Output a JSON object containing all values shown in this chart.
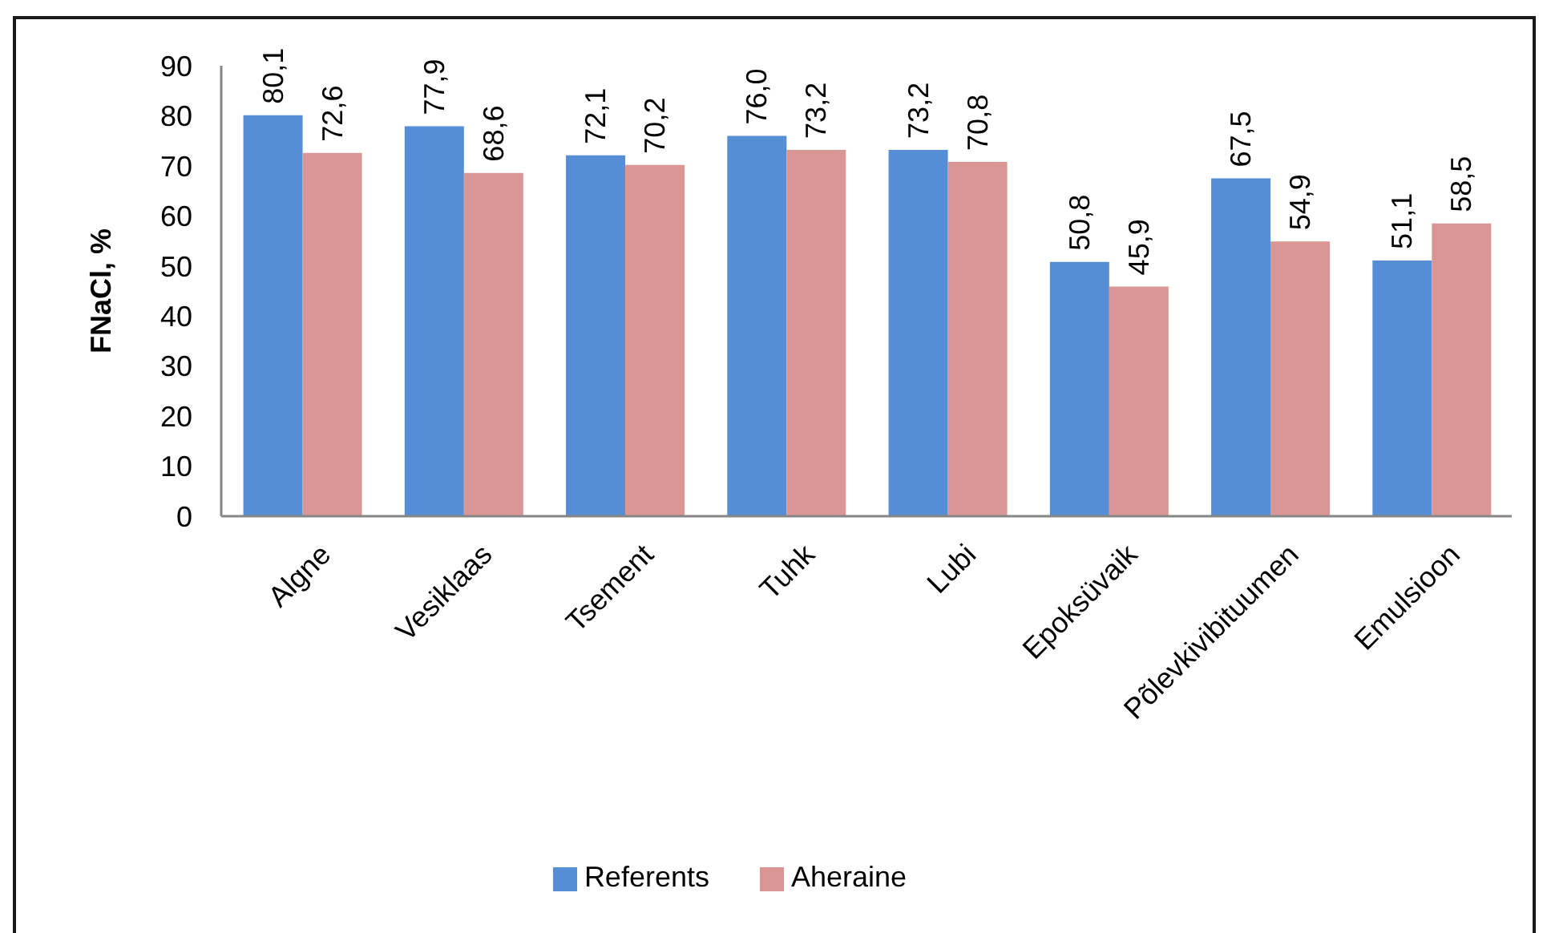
{
  "chart_data": {
    "type": "bar",
    "ylabel": "FNaCl, %",
    "categories": [
      "Algne",
      "Vesiklaas",
      "Tsement",
      "Tuhk",
      "Lubi",
      "Epoksüvaik",
      "Põlevkivibituumen",
      "Emulsioon"
    ],
    "series": [
      {
        "name": "Referents",
        "color": "#558ed5",
        "values": [
          80.1,
          77.9,
          72.1,
          76.0,
          73.2,
          50.8,
          67.5,
          51.1
        ],
        "value_labels": [
          "80,1",
          "77,9",
          "72,1",
          "76,0",
          "73,2",
          "50,8",
          "67,5",
          "51,1"
        ]
      },
      {
        "name": "Aheraine",
        "color": "#d99694",
        "values": [
          72.6,
          68.6,
          70.2,
          73.2,
          70.8,
          45.9,
          54.9,
          58.5
        ],
        "value_labels": [
          "72,6",
          "68,6",
          "70,2",
          "73,2",
          "70,8",
          "45,9",
          "54,9",
          "58,5"
        ]
      }
    ],
    "ylim": [
      0,
      90
    ],
    "yticks": [
      0,
      10,
      20,
      30,
      40,
      50,
      60,
      70,
      80,
      90
    ],
    "grid": false,
    "legend": "bottom"
  }
}
